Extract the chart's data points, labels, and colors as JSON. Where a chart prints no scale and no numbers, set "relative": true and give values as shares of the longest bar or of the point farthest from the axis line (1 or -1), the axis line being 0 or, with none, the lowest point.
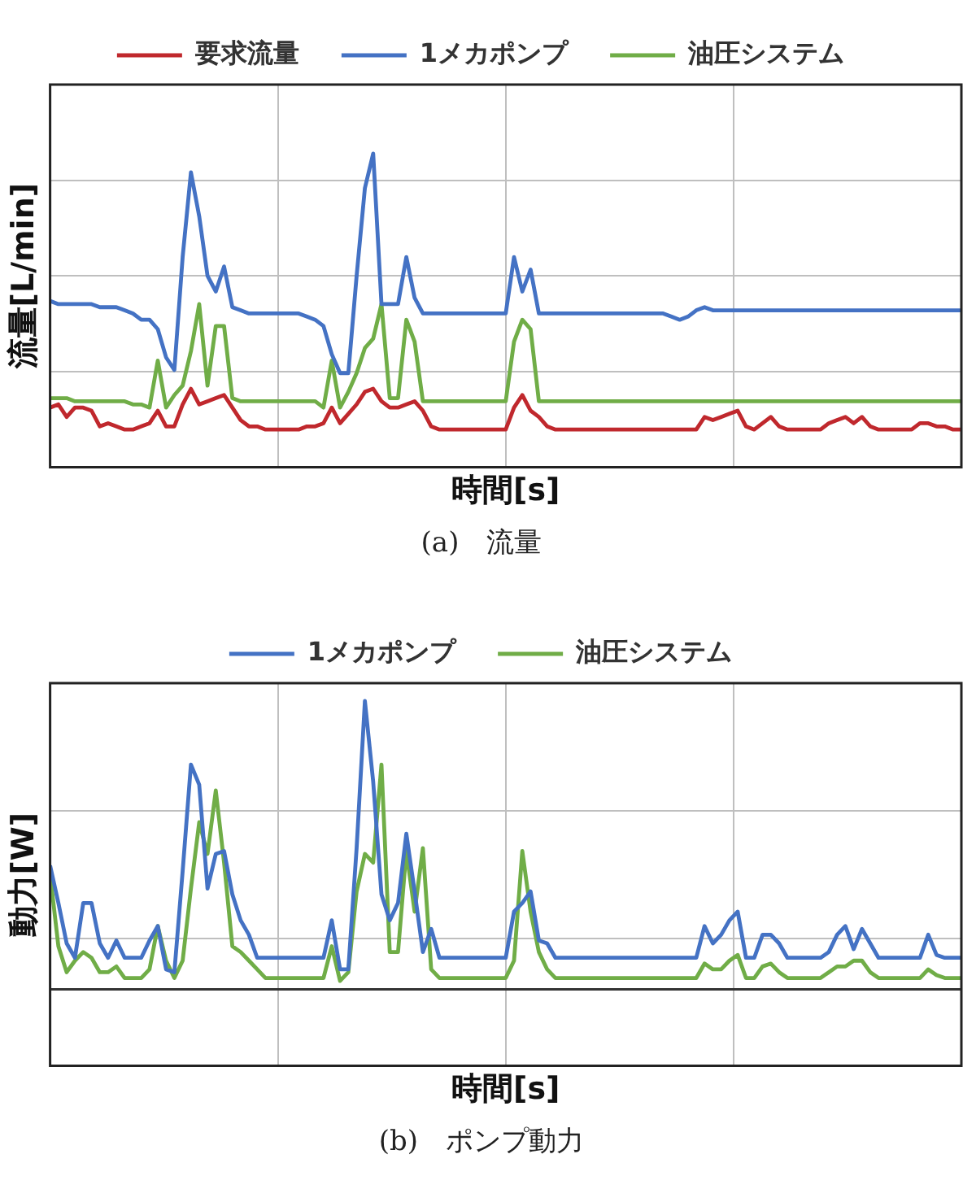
{
  "chart_data": [
    {
      "type": "line",
      "relative": true,
      "xlabel": "時間[s]",
      "ylabel": "流量[L/min]",
      "legend": "top",
      "grid": true,
      "annotations": [
        "(a)　流量"
      ],
      "categories": [
        null,
        null,
        null,
        null,
        null,
        null,
        null,
        null,
        null,
        null,
        null,
        null,
        null,
        null,
        null,
        null,
        null,
        null,
        null,
        null,
        null,
        null,
        null,
        null,
        null,
        null,
        null,
        null,
        null,
        null,
        null,
        null,
        null,
        null,
        null,
        null,
        null,
        null,
        null,
        null,
        null,
        null,
        null,
        null,
        null,
        null,
        null,
        null,
        null,
        null,
        null,
        null,
        null,
        null,
        null,
        null,
        null,
        null,
        null,
        null,
        null,
        null,
        null,
        null,
        null,
        null,
        null,
        null,
        null,
        null,
        null,
        null,
        null,
        null,
        null,
        null,
        null,
        null,
        null,
        null,
        null,
        null,
        null,
        null,
        null,
        null,
        null,
        null,
        null,
        null,
        null,
        null,
        null,
        null,
        null,
        null,
        null,
        null,
        null,
        null,
        null,
        null,
        null,
        null,
        null,
        null,
        null,
        null,
        null,
        null,
        null
      ],
      "series": [
        {
          "name": "要求流量",
          "color": "#c0282d",
          "values": [
            0.19,
            0.2,
            0.16,
            0.19,
            0.19,
            0.18,
            0.13,
            0.14,
            0.13,
            0.12,
            0.12,
            0.13,
            0.14,
            0.18,
            0.13,
            0.13,
            0.2,
            0.25,
            0.2,
            0.21,
            0.22,
            0.23,
            0.19,
            0.15,
            0.13,
            0.13,
            0.12,
            0.12,
            0.12,
            0.12,
            0.12,
            0.13,
            0.13,
            0.14,
            0.19,
            0.14,
            0.17,
            0.2,
            0.24,
            0.25,
            0.21,
            0.19,
            0.19,
            0.2,
            0.21,
            0.18,
            0.13,
            0.12,
            0.12,
            0.12,
            0.12,
            0.12,
            0.12,
            0.12,
            0.12,
            0.12,
            0.19,
            0.23,
            0.18,
            0.16,
            0.13,
            0.12,
            0.12,
            0.12,
            0.12,
            0.12,
            0.12,
            0.12,
            0.12,
            0.12,
            0.12,
            0.12,
            0.12,
            0.12,
            0.12,
            0.12,
            0.12,
            0.12,
            0.12,
            0.16,
            0.15,
            0.16,
            0.17,
            0.18,
            0.13,
            0.12,
            0.14,
            0.16,
            0.13,
            0.12,
            0.12,
            0.12,
            0.12,
            0.12,
            0.14,
            0.15,
            0.16,
            0.14,
            0.16,
            0.13,
            0.12,
            0.12,
            0.12,
            0.12,
            0.12,
            0.14,
            0.14,
            0.13,
            0.13,
            0.12,
            0.12
          ]
        },
        {
          "name": "1メカポンプ",
          "color": "#4472c4",
          "values": [
            0.53,
            0.52,
            0.52,
            0.52,
            0.52,
            0.52,
            0.51,
            0.51,
            0.51,
            0.5,
            0.49,
            0.47,
            0.47,
            0.44,
            0.35,
            0.31,
            0.67,
            0.94,
            0.8,
            0.61,
            0.56,
            0.64,
            0.51,
            0.5,
            0.49,
            0.49,
            0.49,
            0.49,
            0.49,
            0.49,
            0.49,
            0.48,
            0.47,
            0.45,
            0.36,
            0.3,
            0.3,
            0.61,
            0.89,
            1,
            0.52,
            0.52,
            0.52,
            0.67,
            0.54,
            0.49,
            0.49,
            0.49,
            0.49,
            0.49,
            0.49,
            0.49,
            0.49,
            0.49,
            0.49,
            0.49,
            0.67,
            0.56,
            0.63,
            0.49,
            0.49,
            0.49,
            0.49,
            0.49,
            0.49,
            0.49,
            0.49,
            0.49,
            0.49,
            0.49,
            0.49,
            0.49,
            0.49,
            0.49,
            0.49,
            0.48,
            0.47,
            0.48,
            0.5,
            0.51,
            0.5,
            0.5,
            0.5,
            0.5,
            0.5,
            0.5,
            0.5,
            0.5,
            0.5,
            0.5,
            0.5,
            0.5,
            0.5,
            0.5,
            0.5,
            0.5,
            0.5,
            0.5,
            0.5,
            0.5,
            0.5,
            0.5,
            0.5,
            0.5,
            0.5,
            0.5,
            0.5,
            0.5,
            0.5,
            0.5,
            0.5
          ]
        },
        {
          "name": "油圧システム",
          "color": "#70ad47",
          "values": [
            0.22,
            0.22,
            0.22,
            0.21,
            0.21,
            0.21,
            0.21,
            0.21,
            0.21,
            0.21,
            0.2,
            0.2,
            0.19,
            0.34,
            0.19,
            0.23,
            0.26,
            0.37,
            0.52,
            0.26,
            0.45,
            0.45,
            0.22,
            0.21,
            0.21,
            0.21,
            0.21,
            0.21,
            0.21,
            0.21,
            0.21,
            0.21,
            0.21,
            0.19,
            0.34,
            0.19,
            0.24,
            0.3,
            0.38,
            0.41,
            0.52,
            0.22,
            0.22,
            0.47,
            0.4,
            0.21,
            0.21,
            0.21,
            0.21,
            0.21,
            0.21,
            0.21,
            0.21,
            0.21,
            0.21,
            0.21,
            0.4,
            0.47,
            0.44,
            0.21,
            0.21,
            0.21,
            0.21,
            0.21,
            0.21,
            0.21,
            0.21,
            0.21,
            0.21,
            0.21,
            0.21,
            0.21,
            0.21,
            0.21,
            0.21,
            0.21,
            0.21,
            0.21,
            0.21,
            0.21,
            0.21,
            0.21,
            0.21,
            0.21,
            0.21,
            0.21,
            0.21,
            0.21,
            0.21,
            0.21,
            0.21,
            0.21,
            0.21,
            0.21,
            0.21,
            0.21,
            0.21,
            0.21,
            0.21,
            0.21,
            0.21,
            0.21,
            0.21,
            0.21,
            0.21,
            0.21,
            0.21,
            0.21,
            0.21,
            0.21,
            0.21
          ]
        }
      ]
    },
    {
      "type": "line",
      "relative": true,
      "xlabel": "時間[s]",
      "ylabel": "動力[W]",
      "legend": "top",
      "grid": true,
      "annotations": [
        "(b)　ポンプ動力"
      ],
      "categories": [
        null,
        null,
        null,
        null,
        null,
        null,
        null,
        null,
        null,
        null,
        null,
        null,
        null,
        null,
        null,
        null,
        null,
        null,
        null,
        null,
        null,
        null,
        null,
        null,
        null,
        null,
        null,
        null,
        null,
        null,
        null,
        null,
        null,
        null,
        null,
        null,
        null,
        null,
        null,
        null,
        null,
        null,
        null,
        null,
        null,
        null,
        null,
        null,
        null,
        null,
        null,
        null,
        null,
        null,
        null,
        null,
        null,
        null,
        null,
        null,
        null,
        null,
        null,
        null,
        null,
        null,
        null,
        null,
        null,
        null,
        null,
        null,
        null,
        null,
        null,
        null,
        null,
        null,
        null,
        null,
        null,
        null,
        null,
        null,
        null,
        null,
        null,
        null,
        null,
        null,
        null,
        null,
        null,
        null,
        null,
        null,
        null,
        null,
        null,
        null,
        null,
        null,
        null,
        null,
        null,
        null,
        null,
        null,
        null,
        null,
        null
      ],
      "series": [
        {
          "name": "1メカポンプ",
          "color": "#4472c4",
          "values": [
            0.43,
            0.3,
            0.16,
            0.11,
            0.3,
            0.3,
            0.16,
            0.11,
            0.17,
            0.11,
            0.11,
            0.11,
            0.17,
            0.22,
            0.07,
            0.06,
            0.41,
            0.78,
            0.71,
            0.35,
            0.47,
            0.48,
            0.33,
            0.24,
            0.19,
            0.11,
            0.11,
            0.11,
            0.11,
            0.11,
            0.11,
            0.11,
            0.11,
            0.11,
            0.24,
            0.07,
            0.07,
            0.49,
            1,
            0.72,
            0.33,
            0.24,
            0.3,
            0.54,
            0.34,
            0.13,
            0.21,
            0.11,
            0.11,
            0.11,
            0.11,
            0.11,
            0.11,
            0.11,
            0.11,
            0.11,
            0.27,
            0.3,
            0.34,
            0.17,
            0.16,
            0.11,
            0.11,
            0.11,
            0.11,
            0.11,
            0.11,
            0.11,
            0.11,
            0.11,
            0.11,
            0.11,
            0.11,
            0.11,
            0.11,
            0.11,
            0.11,
            0.11,
            0.11,
            0.22,
            0.16,
            0.19,
            0.24,
            0.27,
            0.11,
            0.11,
            0.19,
            0.19,
            0.16,
            0.11,
            0.11,
            0.11,
            0.11,
            0.11,
            0.13,
            0.19,
            0.22,
            0.14,
            0.21,
            0.16,
            0.11,
            0.11,
            0.11,
            0.11,
            0.11,
            0.11,
            0.19,
            0.12,
            0.11,
            0.11,
            0.11
          ]
        },
        {
          "name": "油圧システム",
          "color": "#70ad47",
          "values": [
            0.4,
            0.15,
            0.06,
            0.1,
            0.13,
            0.11,
            0.06,
            0.06,
            0.08,
            0.04,
            0.04,
            0.04,
            0.07,
            0.22,
            0.1,
            0.04,
            0.1,
            0.35,
            0.58,
            0.47,
            0.69,
            0.44,
            0.15,
            0.13,
            0.1,
            0.07,
            0.04,
            0.04,
            0.04,
            0.04,
            0.04,
            0.04,
            0.04,
            0.04,
            0.15,
            0.03,
            0.06,
            0.34,
            0.47,
            0.44,
            0.78,
            0.13,
            0.13,
            0.48,
            0.27,
            0.49,
            0.07,
            0.04,
            0.04,
            0.04,
            0.04,
            0.04,
            0.04,
            0.04,
            0.04,
            0.04,
            0.1,
            0.48,
            0.27,
            0.13,
            0.07,
            0.04,
            0.04,
            0.04,
            0.04,
            0.04,
            0.04,
            0.04,
            0.04,
            0.04,
            0.04,
            0.04,
            0.04,
            0.04,
            0.04,
            0.04,
            0.04,
            0.04,
            0.04,
            0.09,
            0.07,
            0.07,
            0.1,
            0.12,
            0.04,
            0.04,
            0.08,
            0.09,
            0.06,
            0.04,
            0.04,
            0.04,
            0.04,
            0.04,
            0.06,
            0.08,
            0.08,
            0.1,
            0.1,
            0.06,
            0.04,
            0.04,
            0.04,
            0.04,
            0.04,
            0.04,
            0.07,
            0.05,
            0.04,
            0.04,
            0.04
          ]
        }
      ]
    }
  ]
}
